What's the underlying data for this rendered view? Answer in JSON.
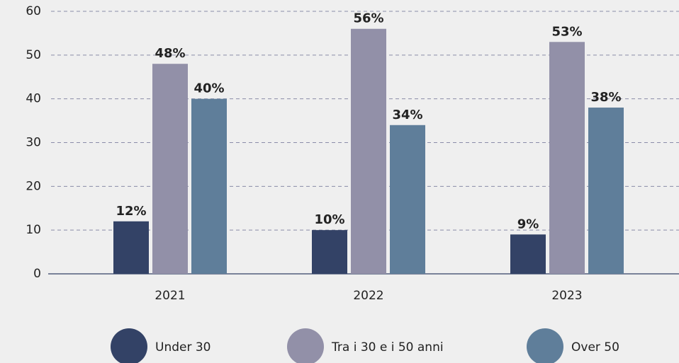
{
  "chart_data": {
    "type": "bar",
    "categories": [
      "2021",
      "2022",
      "2023"
    ],
    "series": [
      {
        "name": "Under 30",
        "color": "#334266",
        "values": [
          12,
          10,
          9
        ],
        "value_labels": [
          "12%",
          "10%",
          "9%"
        ]
      },
      {
        "name": "Tra i 30 e i 50 anni",
        "color": "#9290a8",
        "values": [
          48,
          56,
          53
        ],
        "value_labels": [
          "48%",
          "56%",
          "53%"
        ]
      },
      {
        "name": "Over 50",
        "color": "#5f7e9a",
        "values": [
          40,
          34,
          38
        ],
        "value_labels": [
          "40%",
          "34%",
          "38%"
        ]
      }
    ],
    "ylim": [
      0,
      60
    ],
    "yticks": [
      0,
      10,
      20,
      30,
      40,
      50,
      60
    ],
    "grid": true,
    "legend": "bottom"
  }
}
